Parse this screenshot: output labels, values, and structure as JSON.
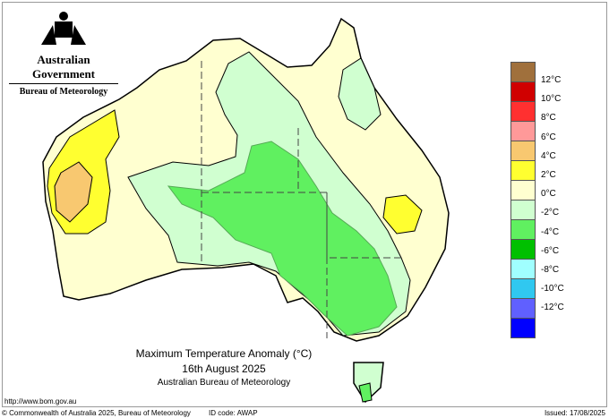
{
  "header": {
    "government": "Australian Government",
    "bureau": "Bureau of Meteorology"
  },
  "legend": {
    "colors": [
      "#a0703c",
      "#d00000",
      "#ff3030",
      "#ff9999",
      "#f8c870",
      "#ffff30",
      "#ffffd0",
      "#d0ffd0",
      "#60f060",
      "#00c000",
      "#a0ffff",
      "#30c8f0",
      "#6060ff",
      "#0000ff"
    ],
    "labels": [
      "12°C",
      "10°C",
      "8°C",
      "6°C",
      "4°C",
      "2°C",
      "0°C",
      "-2°C",
      "-4°C",
      "-6°C",
      "-8°C",
      "-10°C",
      "-12°C"
    ]
  },
  "title": {
    "line1": "Maximum Temperature Anomaly (°C)",
    "line2": "16th August 2025",
    "line3": "Australian Bureau of Meteorology"
  },
  "footer": {
    "url": "http://www.bom.gov.au",
    "copyright": "© Commonwealth of Australia 2025, Bureau of Meteorology",
    "id_code": "ID code: AWAP",
    "issued": "Issued: 17/08/2025"
  }
}
